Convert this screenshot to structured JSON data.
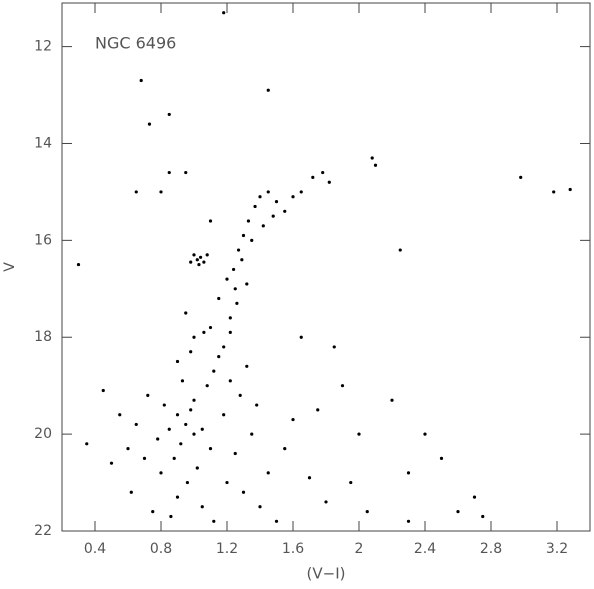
{
  "chart_data": {
    "type": "scatter",
    "annotation": "NGC 6496",
    "x_label": "(V−I)",
    "y_label": "V",
    "color": "#000000",
    "xlim": [
      0.2,
      3.4
    ],
    "ylim": [
      22,
      11.1
    ],
    "xticks": [
      0.4,
      0.8,
      1.2,
      1.6,
      2,
      2.4,
      2.8,
      3.2
    ],
    "yticks": [
      12,
      14,
      16,
      18,
      20,
      22
    ],
    "x": [
      0.9,
      0.95,
      1.0,
      0.92,
      0.98,
      1.05,
      0.88,
      1.02,
      0.96,
      1.1,
      0.85,
      1.0,
      1.08,
      0.93,
      1.12,
      1.15,
      0.9,
      1.05,
      1.2,
      0.8,
      0.78,
      0.82,
      1.18,
      1.25,
      1.3,
      0.75,
      0.7,
      0.65,
      0.6,
      1.35,
      1.28,
      1.22,
      1.18,
      1.1,
      1.22,
      1.15,
      1.25,
      1.2,
      0.95,
      0.9,
      1.0,
      1.4,
      1.5,
      1.45,
      1.55,
      1.6,
      1.7,
      1.8,
      0.55,
      0.5,
      0.45,
      0.35,
      0.62,
      0.72,
      1.32,
      1.38,
      0.86,
      1.12,
      0.98,
      1.06,
      1.24,
      1.27,
      1.3,
      1.33,
      1.37,
      1.4,
      1.45,
      1.5,
      1.55,
      1.6,
      1.65,
      1.72,
      1.78,
      1.82,
      1.42,
      1.35,
      1.29,
      1.32,
      1.26,
      1.22,
      1.48,
      1.0,
      1.02,
      1.04,
      1.06,
      1.03,
      1.08,
      0.98,
      2.08,
      2.1,
      2.98,
      3.18,
      3.28,
      1.18,
      0.85,
      0.73,
      0.68,
      1.45,
      0.3,
      0.8,
      0.85,
      0.65,
      0.95,
      1.1,
      2.2,
      2.3,
      2.5,
      2.6,
      2.75,
      2.3,
      2.0,
      1.9,
      1.95,
      2.05,
      2.4,
      1.85,
      1.65,
      2.25,
      2.7,
      1.75
    ],
    "y": [
      19.6,
      19.8,
      20.0,
      20.2,
      19.5,
      19.9,
      20.5,
      20.7,
      21.0,
      20.3,
      19.9,
      19.3,
      19.0,
      18.9,
      18.7,
      18.4,
      21.3,
      21.5,
      21.0,
      20.8,
      20.1,
      19.4,
      19.6,
      20.4,
      21.2,
      21.6,
      20.5,
      19.8,
      20.3,
      20.0,
      19.2,
      18.9,
      18.2,
      17.8,
      17.6,
      17.2,
      17.0,
      16.8,
      17.5,
      18.5,
      18.0,
      21.5,
      21.8,
      20.8,
      20.3,
      19.7,
      20.9,
      21.4,
      19.6,
      20.6,
      19.1,
      20.2,
      21.2,
      19.2,
      18.6,
      19.4,
      21.7,
      21.8,
      18.3,
      17.9,
      16.6,
      16.2,
      15.9,
      15.6,
      15.3,
      15.1,
      15.0,
      15.2,
      15.4,
      15.1,
      15.0,
      14.7,
      14.6,
      14.8,
      15.7,
      16.0,
      16.4,
      16.9,
      17.3,
      17.9,
      15.5,
      16.3,
      16.4,
      16.35,
      16.45,
      16.5,
      16.3,
      16.45,
      14.3,
      14.45,
      14.7,
      15.0,
      14.95,
      11.3,
      13.4,
      13.6,
      12.7,
      12.9,
      16.5,
      15.0,
      14.6,
      15.0,
      14.6,
      15.6,
      19.3,
      20.8,
      20.5,
      21.6,
      21.7,
      21.8,
      20.0,
      19.0,
      21.0,
      21.6,
      20.0,
      18.2,
      18.0,
      16.2,
      21.3,
      19.5
    ]
  }
}
